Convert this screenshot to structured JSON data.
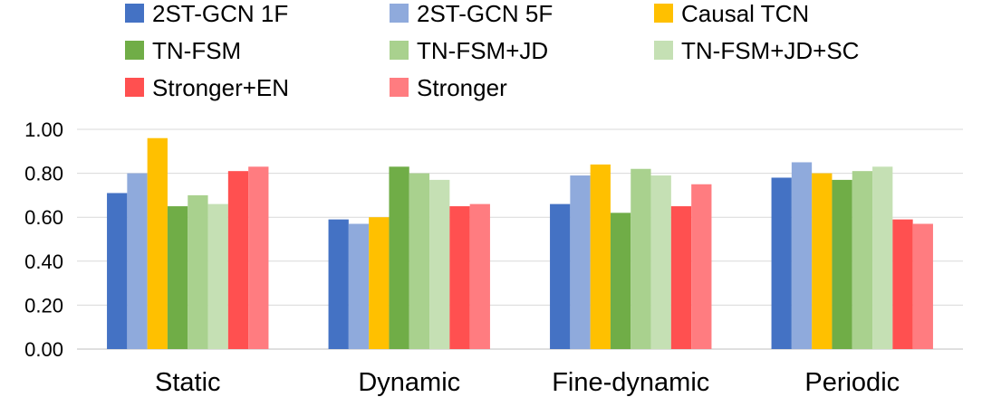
{
  "chart_data": {
    "type": "bar",
    "title": "",
    "xlabel": "",
    "ylabel": "",
    "ylim": [
      0,
      1.0
    ],
    "yticks": [
      "0.00",
      "0.20",
      "0.40",
      "0.60",
      "0.80",
      "1.00"
    ],
    "grid": true,
    "legend_position": "top",
    "categories": [
      "Static",
      "Dynamic",
      "Fine-dynamic",
      "Periodic"
    ],
    "series": [
      {
        "name": "2ST-GCN 1F",
        "color": "#4472C4",
        "values": [
          0.71,
          0.59,
          0.66,
          0.78
        ]
      },
      {
        "name": "2ST-GCN 5F",
        "color": "#8FAADC",
        "values": [
          0.8,
          0.57,
          0.79,
          0.85
        ]
      },
      {
        "name": "Causal TCN",
        "color": "#FFC000",
        "values": [
          0.96,
          0.6,
          0.84,
          0.8
        ]
      },
      {
        "name": "TN-FSM",
        "color": "#70AD47",
        "values": [
          0.65,
          0.83,
          0.62,
          0.77
        ]
      },
      {
        "name": "TN-FSM+JD",
        "color": "#A9D18E",
        "values": [
          0.7,
          0.8,
          0.82,
          0.81
        ]
      },
      {
        "name": "TN-FSM+JD+SC",
        "color": "#C5E0B4",
        "values": [
          0.66,
          0.77,
          0.79,
          0.83
        ]
      },
      {
        "name": "Stronger+EN",
        "color": "#FF5050",
        "values": [
          0.81,
          0.65,
          0.65,
          0.59
        ]
      },
      {
        "name": "Stronger",
        "color": "#FF7C80",
        "values": [
          0.83,
          0.66,
          0.75,
          0.57
        ]
      }
    ]
  }
}
